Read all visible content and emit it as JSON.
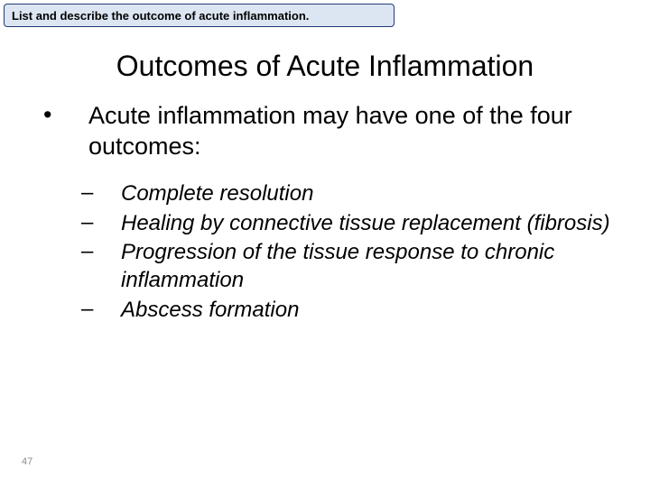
{
  "header": {
    "text": "List and describe the outcome of acute inflammation.",
    "background_color": "#dce6f2",
    "border_color": "#223b77",
    "text_color": "#000000",
    "font_size": 13
  },
  "title": {
    "text": "Outcomes of Acute Inflammation",
    "color": "#000000",
    "font_size": 32
  },
  "main_bullet": {
    "marker": "•",
    "text": "Acute inflammation may have one of the four outcomes:",
    "color": "#000000",
    "font_size": 27
  },
  "sub_items": [
    {
      "text": "Complete resolution"
    },
    {
      "text": "Healing by connective tissue replacement (fibrosis)"
    },
    {
      "text": "Progression of the tissue response to chronic inflammation"
    },
    {
      "text": "Abscess formation"
    }
  ],
  "sub_style": {
    "dash": "–",
    "color": "#000000",
    "font_size": 24
  },
  "page_number": {
    "text": "47",
    "color": "#8a8a8a",
    "font_size": 11
  }
}
